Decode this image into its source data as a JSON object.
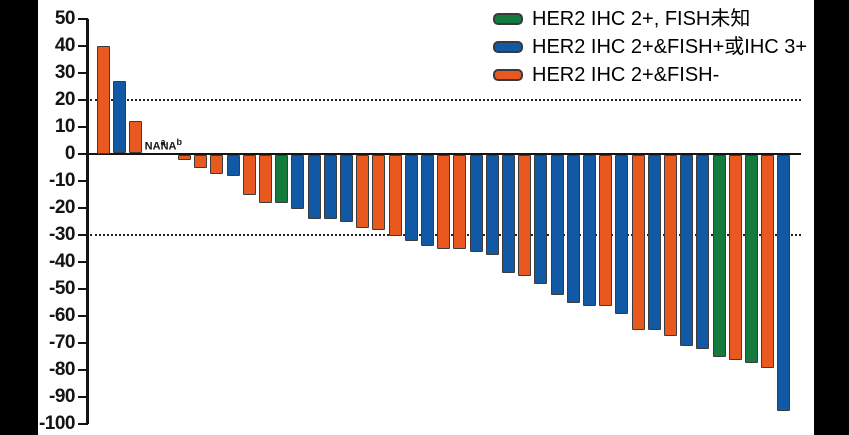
{
  "chart_data": {
    "type": "bar",
    "subtype": "waterfall-tumor-response",
    "ylim": [
      -100,
      50
    ],
    "yticks": [
      50,
      40,
      30,
      20,
      10,
      0,
      -10,
      -20,
      -30,
      -40,
      -50,
      -60,
      -70,
      -80,
      -90,
      -100
    ],
    "thresholds": [
      20,
      -30
    ],
    "grid": "off",
    "legend_position": "top-right",
    "legend": [
      {
        "key": "green",
        "label": "HER2 IHC 2+, FISH未知",
        "color": "#147B3E"
      },
      {
        "key": "blue",
        "label": "HER2 IHC 2+&FISH+或IHC 3+",
        "color": "#1259A5"
      },
      {
        "key": "orange",
        "label": "HER2 IHC 2+&FISH-",
        "color": "#E9581F"
      }
    ],
    "na_labels": [
      {
        "slot": 4,
        "text": "NA",
        "sup": "a"
      },
      {
        "slot": 5,
        "text": "NA",
        "sup": "b"
      }
    ],
    "bars": [
      {
        "slot": 1,
        "value": 40,
        "group": "orange"
      },
      {
        "slot": 2,
        "value": 27,
        "group": "blue"
      },
      {
        "slot": 3,
        "value": 12,
        "group": "orange"
      },
      {
        "slot": 6,
        "value": -2,
        "group": "orange"
      },
      {
        "slot": 7,
        "value": -5,
        "group": "orange"
      },
      {
        "slot": 8,
        "value": -7,
        "group": "orange"
      },
      {
        "slot": 9,
        "value": -8,
        "group": "blue"
      },
      {
        "slot": 10,
        "value": -15,
        "group": "orange"
      },
      {
        "slot": 11,
        "value": -18,
        "group": "orange"
      },
      {
        "slot": 12,
        "value": -18,
        "group": "green"
      },
      {
        "slot": 13,
        "value": -20,
        "group": "blue"
      },
      {
        "slot": 14,
        "value": -24,
        "group": "blue"
      },
      {
        "slot": 15,
        "value": -24,
        "group": "blue"
      },
      {
        "slot": 16,
        "value": -25,
        "group": "blue"
      },
      {
        "slot": 17,
        "value": -27,
        "group": "orange"
      },
      {
        "slot": 18,
        "value": -28,
        "group": "orange"
      },
      {
        "slot": 19,
        "value": -30,
        "group": "orange"
      },
      {
        "slot": 20,
        "value": -32,
        "group": "blue"
      },
      {
        "slot": 21,
        "value": -34,
        "group": "blue"
      },
      {
        "slot": 22,
        "value": -35,
        "group": "orange"
      },
      {
        "slot": 23,
        "value": -35,
        "group": "orange"
      },
      {
        "slot": 24,
        "value": -36,
        "group": "blue"
      },
      {
        "slot": 25,
        "value": -37,
        "group": "blue"
      },
      {
        "slot": 26,
        "value": -44,
        "group": "blue"
      },
      {
        "slot": 27,
        "value": -45,
        "group": "orange"
      },
      {
        "slot": 28,
        "value": -48,
        "group": "blue"
      },
      {
        "slot": 29,
        "value": -52,
        "group": "blue"
      },
      {
        "slot": 30,
        "value": -55,
        "group": "blue"
      },
      {
        "slot": 31,
        "value": -56,
        "group": "blue"
      },
      {
        "slot": 32,
        "value": -56,
        "group": "orange"
      },
      {
        "slot": 33,
        "value": -59,
        "group": "blue"
      },
      {
        "slot": 34,
        "value": -65,
        "group": "orange"
      },
      {
        "slot": 35,
        "value": -65,
        "group": "blue"
      },
      {
        "slot": 36,
        "value": -67,
        "group": "orange"
      },
      {
        "slot": 37,
        "value": -71,
        "group": "blue"
      },
      {
        "slot": 38,
        "value": -72,
        "group": "blue"
      },
      {
        "slot": 39,
        "value": -75,
        "group": "green"
      },
      {
        "slot": 40,
        "value": -76,
        "group": "orange"
      },
      {
        "slot": 41,
        "value": -77,
        "group": "green"
      },
      {
        "slot": 42,
        "value": -79,
        "group": "orange"
      },
      {
        "slot": 43,
        "value": -95,
        "group": "blue"
      }
    ],
    "colors": {
      "axis": "#141414",
      "threshold_line": "#222222",
      "panel_background": "#ffffff",
      "outer_background": "#000000"
    }
  }
}
